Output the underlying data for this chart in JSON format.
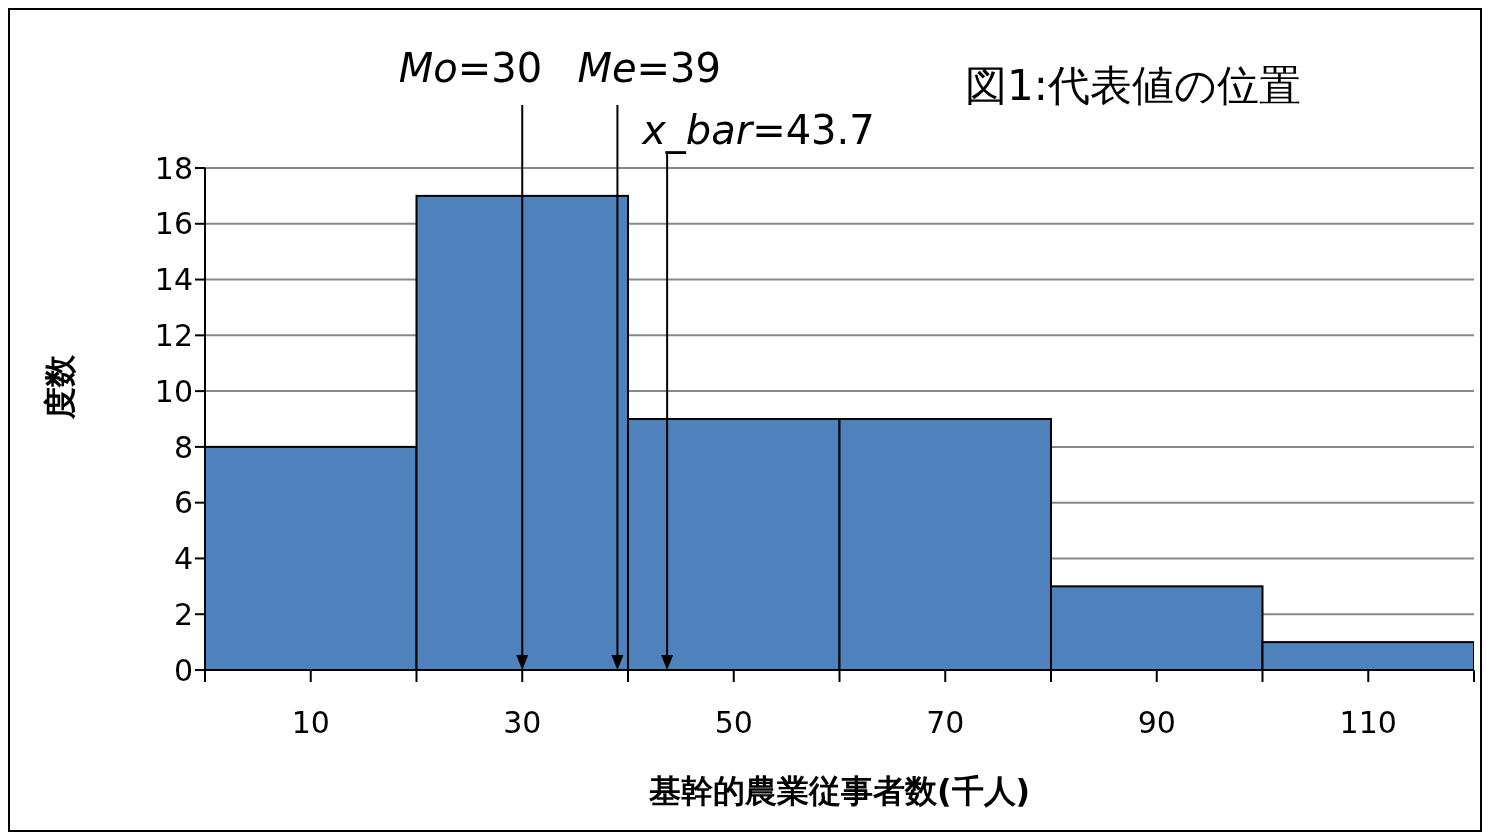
{
  "chart_data": {
    "type": "histogram",
    "title": "図1:代表値の位置",
    "xlabel": "基幹的農業従事者数(千人)",
    "ylabel": "度数",
    "bins": [
      0,
      20,
      40,
      60,
      80,
      100,
      120
    ],
    "values": [
      8,
      17,
      9,
      9,
      3,
      1
    ],
    "color": "#4f81bd",
    "xlim": [
      0,
      120
    ],
    "xticks": [
      {
        "value": 0,
        "label": null
      },
      10,
      {
        "value": 20,
        "label": null
      },
      30,
      {
        "value": 40,
        "label": null
      },
      50,
      {
        "value": 60,
        "label": null
      },
      70,
      {
        "value": 80,
        "label": null
      },
      90,
      {
        "value": 100,
        "label": null
      },
      110,
      {
        "value": 120,
        "label": null
      }
    ],
    "ylim": [
      0,
      18
    ],
    "yticks": [
      0,
      2,
      4,
      6,
      8,
      10,
      12,
      14,
      16,
      18
    ],
    "grid": "y",
    "ref_lines": [
      {
        "axis": "x",
        "value": 30,
        "label": "Mo=30"
      },
      {
        "axis": "x",
        "value": 39,
        "label": "Me=39"
      },
      {
        "axis": "x",
        "value": 43.7,
        "label": "x_bar=43.7"
      }
    ]
  }
}
